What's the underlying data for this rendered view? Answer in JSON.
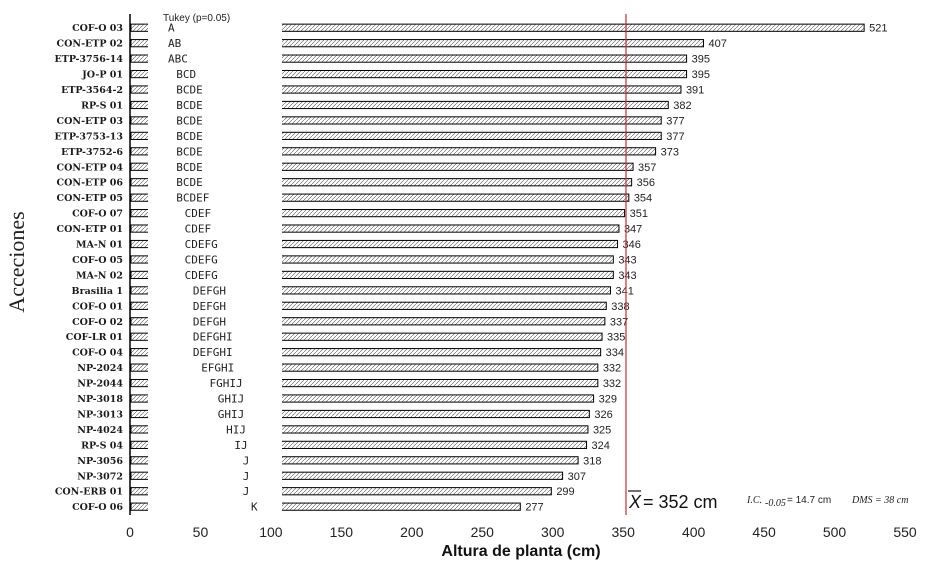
{
  "chart_data": {
    "type": "bar",
    "orientation": "horizontal",
    "tukey_title": "Tukey (p=0.05)",
    "xlabel": "Altura de planta (cm)",
    "ylabel": "Acceciones",
    "xlim": [
      0,
      550
    ],
    "xticks": [
      "0",
      "50",
      "100",
      "150",
      "200",
      "250",
      "300",
      "350",
      "400",
      "450",
      "500",
      "550"
    ],
    "mean_value": 352,
    "mean_label_symbol": "X",
    "mean_label_text": "= 352 cm",
    "ic_label": "I.C.",
    "ic_sub": "-0.05",
    "ic_value": "= 14.7 cm",
    "dms_label": "DMS = 38 cm",
    "bar_color": "#ffffff",
    "bar_stroke": "#000000",
    "mean_line_color": "#d62728",
    "categories": [
      "COF-O 03",
      "CON-ETP 02",
      "ETP-3756-14",
      "JO-P 01",
      "ETP-3564-2",
      "RP-S 01",
      "CON-ETP 03",
      "ETP-3753-13",
      "ETP-3752-6",
      "CON-ETP 04",
      "CON-ETP 06",
      "CON-ETP 05",
      "COF-O 07",
      "CON-ETP 01",
      "MA-N 01",
      "COF-O 05",
      "MA-N 02",
      "Brasilia 1",
      "COF-O 01",
      "COF-O 02",
      "COF-LR 01",
      "COF-O 04",
      "NP-2024",
      "NP-2044",
      "NP-3018",
      "NP-3013",
      "NP-4024",
      "RP-S 04",
      "NP-3056",
      "NP-3072",
      "CON-ERB 01",
      "COF-O 06"
    ],
    "values": [
      521,
      407,
      395,
      395,
      391,
      382,
      377,
      377,
      373,
      357,
      356,
      354,
      351,
      347,
      346,
      343,
      343,
      341,
      338,
      337,
      335,
      334,
      332,
      332,
      329,
      326,
      325,
      324,
      318,
      307,
      299,
      277
    ],
    "value_labels": [
      "521",
      "407",
      "395",
      "395",
      "391",
      "382",
      "377",
      "377",
      "373",
      "357",
      "356",
      "354",
      "351",
      "347",
      "346",
      "343",
      "343",
      "341",
      "338",
      "337",
      "335",
      "334",
      "332",
      "332",
      "329",
      "326",
      "325",
      "324",
      "318",
      "307",
      "299",
      "277"
    ],
    "tukey_groups": [
      "A",
      "AB",
      "ABC",
      "BCD",
      "BCDE",
      "BCDE",
      "BCDE",
      "BCDE",
      "BCDE",
      "BCDE",
      "BCDE",
      "BCDEF",
      "CDEF",
      "CDEF",
      "CDEFG",
      "CDEFG",
      "CDEFG",
      "DEFGH",
      "DEFGH",
      "DEFGH",
      "DEFGHI",
      "DEFGHI",
      "EFGHI",
      "FGHIJ",
      "GHIJ",
      "GHIJ",
      "HIJ",
      "IJ",
      "J",
      "J",
      "J",
      "K"
    ]
  }
}
